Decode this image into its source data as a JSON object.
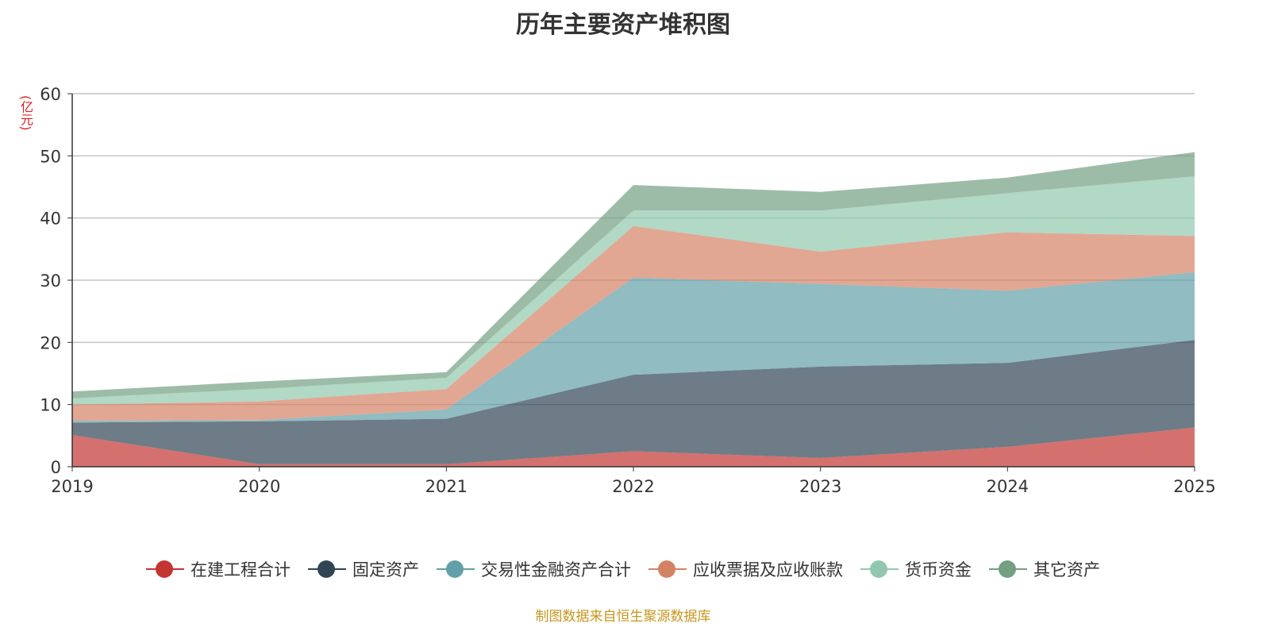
{
  "title": "历年主要资产堆积图",
  "unit": "(亿元)",
  "source": "制图数据来自恒生聚源数据库",
  "chart_data": {
    "type": "area",
    "stacked": true,
    "title": "历年主要资产堆积图",
    "ylabel": "(亿元)",
    "ylim": [
      0,
      60
    ],
    "yticks": [
      0,
      10,
      20,
      30,
      40,
      50,
      60
    ],
    "grid": true,
    "legend": "bottom",
    "categories": [
      "2019",
      "2020",
      "2021",
      "2022",
      "2023",
      "2024",
      "2025"
    ],
    "series": [
      {
        "name": "在建工程合计",
        "color": "#c23531",
        "values": [
          5.1,
          0.4,
          0.4,
          2.5,
          1.4,
          3.2,
          6.3
        ]
      },
      {
        "name": "固定资产",
        "color": "#2f4554",
        "values": [
          2.0,
          6.9,
          7.3,
          12.3,
          14.7,
          13.5,
          14.1
        ]
      },
      {
        "name": "交易性金融资产合计",
        "color": "#61a0a8",
        "values": [
          0.3,
          0.2,
          1.5,
          15.6,
          13.3,
          11.6,
          10.9
        ]
      },
      {
        "name": "应收票据及应收账款",
        "color": "#d48265",
        "values": [
          2.6,
          3.0,
          3.3,
          8.3,
          5.2,
          9.4,
          5.8
        ]
      },
      {
        "name": "货币资金",
        "color": "#91c7ae",
        "values": [
          1.0,
          2.0,
          1.8,
          2.5,
          6.6,
          6.3,
          9.6
        ]
      },
      {
        "name": "其它资产",
        "color": "#749f83",
        "values": [
          1.1,
          1.2,
          0.9,
          4.1,
          3.0,
          2.5,
          3.9
        ]
      }
    ]
  }
}
